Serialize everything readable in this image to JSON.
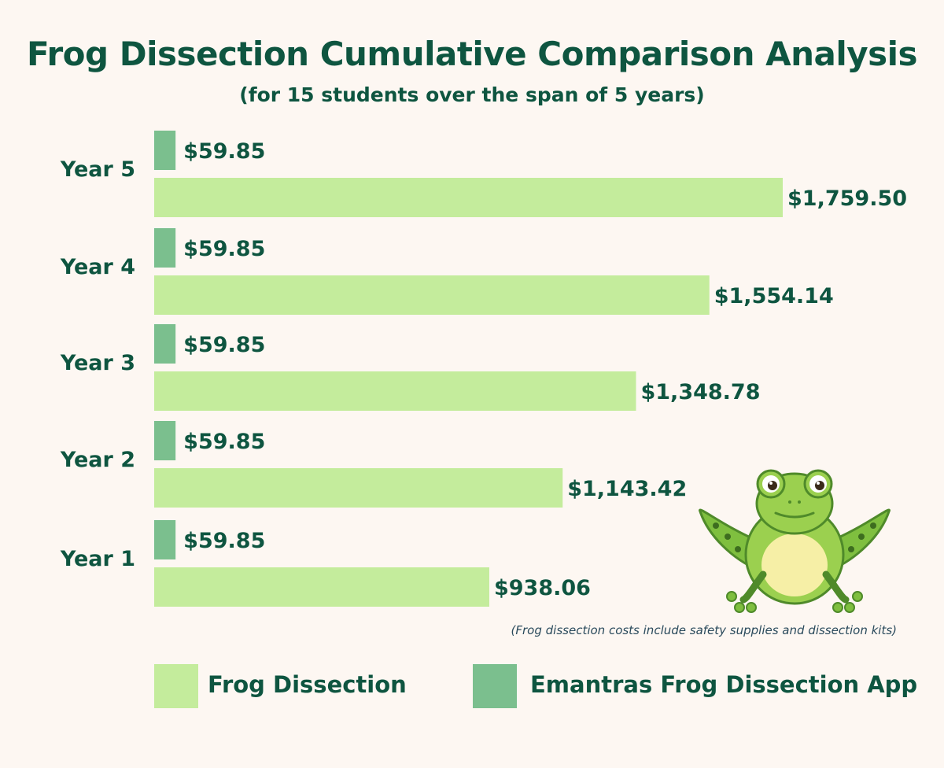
{
  "colors": {
    "background": "#fdf7f2",
    "text": "#0e5540",
    "frog_dissection": "#c4ec9c",
    "app": "#7bbf8e",
    "footnote": "#2a4a5c"
  },
  "chart_data": {
    "type": "bar",
    "orientation": "horizontal",
    "title": "Frog Dissection Cumulative Comparison Analysis",
    "subtitle": "(for 15 students over the span of 5 years)",
    "categories": [
      "Year 5",
      "Year 4",
      "Year 3",
      "Year 2",
      "Year 1"
    ],
    "series": [
      {
        "name": "Emantras Frog Dissection App",
        "color": "#7bbf8e",
        "values": [
          59.85,
          59.85,
          59.85,
          59.85,
          59.85
        ],
        "labels": [
          "$59.85",
          "$59.85",
          "$59.85",
          "$59.85",
          "$59.85"
        ]
      },
      {
        "name": "Frog Dissection",
        "color": "#c4ec9c",
        "values": [
          1759.5,
          1554.14,
          1348.78,
          1143.42,
          938.06
        ],
        "labels": [
          "$1,759.50",
          "$1,554.14",
          "$1,348.78",
          "$1,143.42",
          "$938.06"
        ]
      }
    ],
    "annotation": "(Frog dissection costs include safety supplies and dissection kits)",
    "legend": [
      {
        "label": "Frog Dissection",
        "color": "#c4ec9c"
      },
      {
        "label": "Emantras Frog Dissection App",
        "color": "#7bbf8e"
      }
    ],
    "legend_position": "bottom",
    "grid": false
  },
  "illustration": {
    "icon": "frog-illustration-icon"
  }
}
